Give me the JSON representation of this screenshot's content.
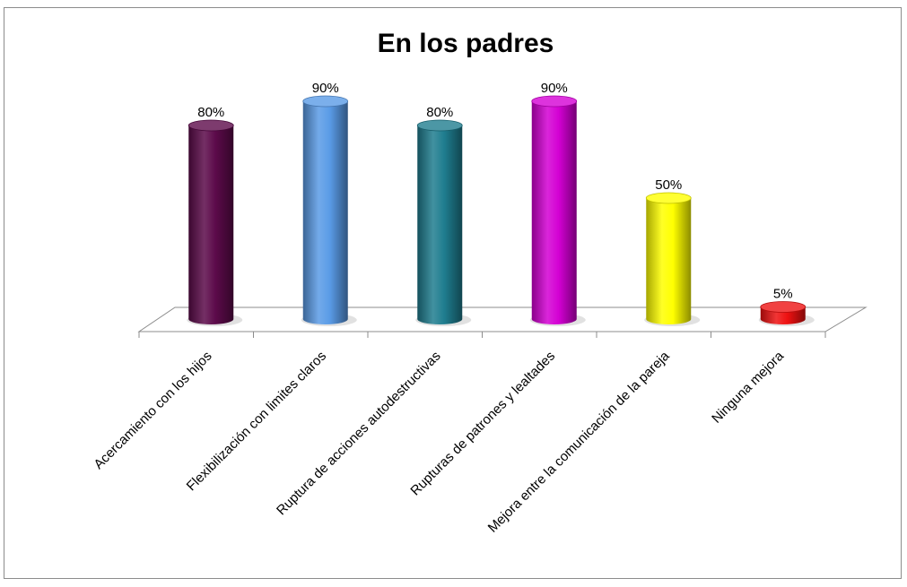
{
  "chart_data": {
    "type": "bar",
    "title": "En los padres",
    "categories": [
      "Acercamiento con los hijos",
      "Flexibilización con limites claros",
      "Ruptura de acciones autodestructivas",
      "Rupturas de patrones y lealtades",
      "Mejora entre la comunicación de la pareja",
      "Ninguna mejora"
    ],
    "values": [
      80,
      90,
      80,
      90,
      50,
      5
    ],
    "value_labels": [
      "80%",
      "90%",
      "80%",
      "90%",
      "50%",
      "5%"
    ],
    "colors": [
      "#5c0a4a",
      "#5a9be6",
      "#1f7d8f",
      "#d400d4",
      "#ffff00",
      "#ee1111"
    ],
    "ylim": [
      0,
      100
    ],
    "legend": "none",
    "grid": false
  }
}
